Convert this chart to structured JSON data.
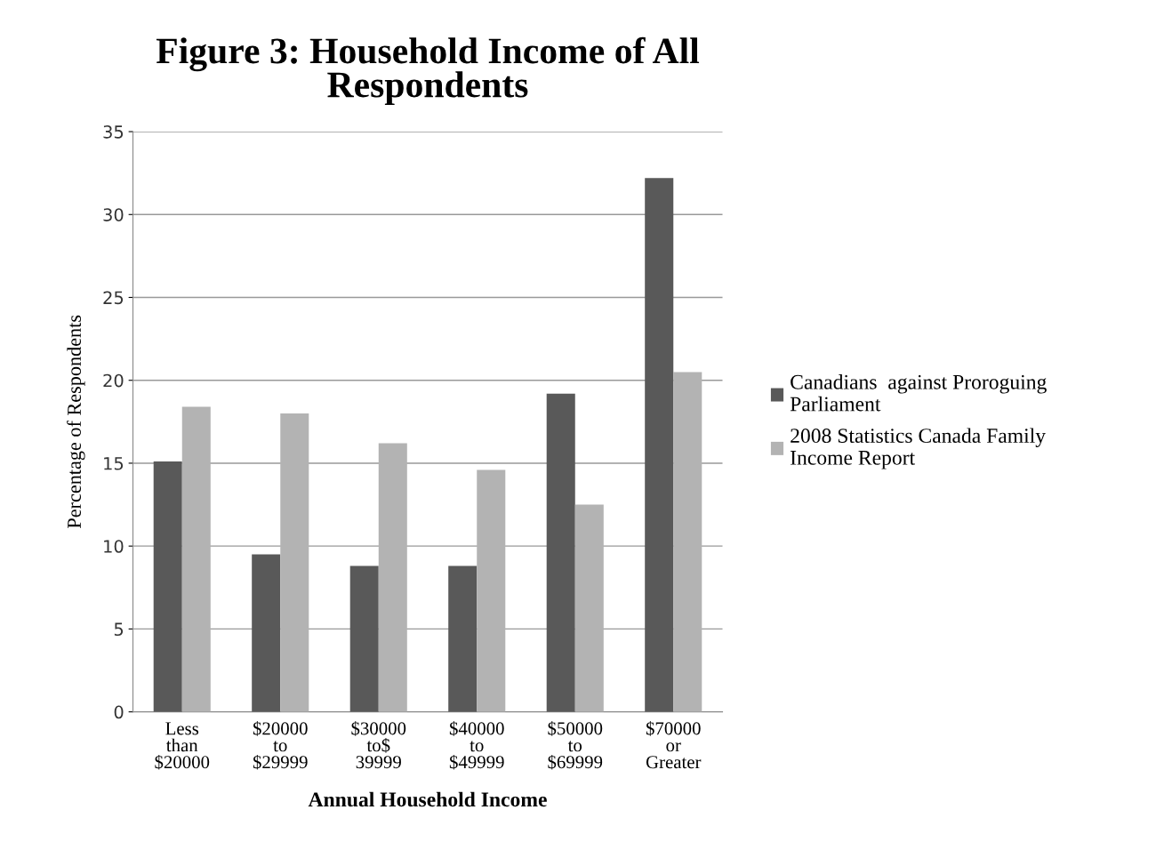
{
  "chart_data": {
    "type": "bar",
    "title": "Figure 3: Household Income of All\nRespondents",
    "xlabel": "Annual Household Income",
    "ylabel": "Percentage of Respondents",
    "categories": [
      "Less\nthan\n$20000",
      "$20000\nto\n$29999",
      "$30000\nto$\n39999",
      "$40000\nto\n$49999",
      "$50000\nto\n$69999",
      "$70000\nor\nGreater"
    ],
    "series": [
      {
        "name": "Canadians  against Proroguing\nParliament",
        "color": "#595959",
        "values": [
          15.1,
          9.5,
          8.8,
          8.8,
          19.2,
          32.2
        ]
      },
      {
        "name": "2008 Statistics Canada Family\nIncome Report",
        "color": "#b3b3b3",
        "values": [
          18.4,
          18.0,
          16.2,
          14.6,
          12.5,
          20.5
        ]
      }
    ],
    "ylim": [
      0,
      35
    ],
    "yticks": [
      0,
      5,
      10,
      15,
      20,
      25,
      30,
      35
    ],
    "grid": "y",
    "legend": "right"
  }
}
